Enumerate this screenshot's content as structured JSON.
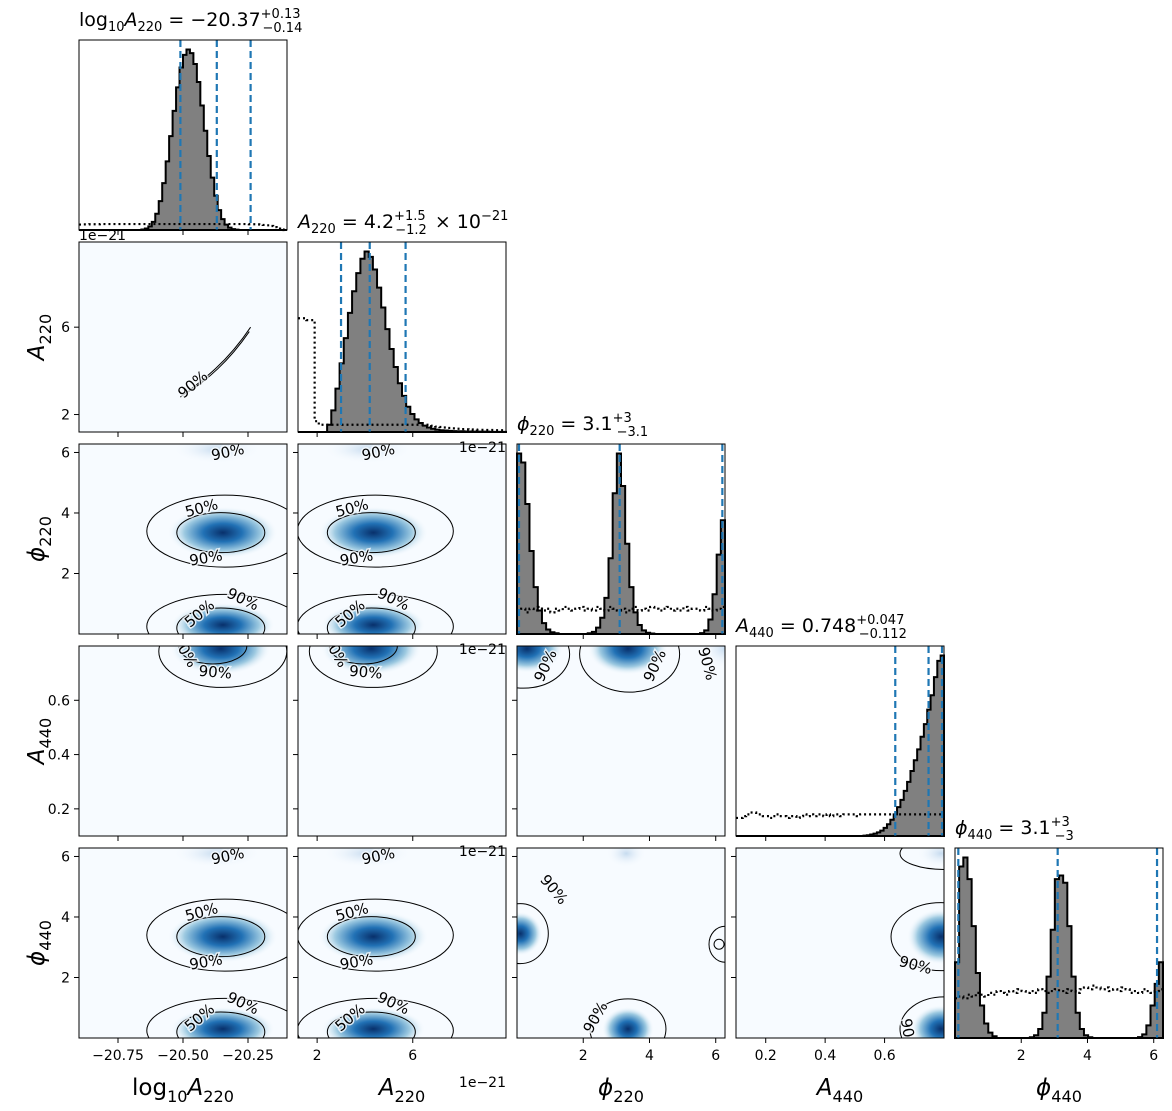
{
  "chart_data": {
    "type": "corner",
    "parameters": [
      {
        "key": "logA220",
        "label_base": "log",
        "label_sub": "10",
        "label_var": "A",
        "label_var_sub": "220",
        "range": [
          -20.9,
          -20.1
        ],
        "ticks": [
          -20.75,
          -20.5,
          -20.25
        ],
        "tick_labels": [
          "−20.75",
          "−20.50",
          "−20.25"
        ],
        "median": -20.37,
        "lower": -20.51,
        "upper": -20.24,
        "title_prefix": "log",
        "title_prefix_sub": "10",
        "title_var": "A",
        "title_var_sub": "220",
        "title_value": " = −20.37",
        "title_sup": "+0.13",
        "title_sub": "−0.14",
        "title_suffix": ""
      },
      {
        "key": "A220",
        "label_var": "A",
        "label_var_sub": "220",
        "range": [
          1.2,
          9.9
        ],
        "ticks": [
          2,
          6
        ],
        "tick_labels": [
          "2",
          "6"
        ],
        "offset_text": "1e−21",
        "median": 4.2,
        "lower": 3.0,
        "upper": 5.7,
        "title_var": "A",
        "title_var_sub": "220",
        "title_value": " = 4.2",
        "title_sup": "+1.5",
        "title_sub": "−1.2",
        "title_suffix": " × 10",
        "title_suffix_sup": "−21"
      },
      {
        "key": "phi220",
        "label_var": "ϕ",
        "label_var_sub": "220",
        "range": [
          0.0,
          6.28
        ],
        "ticks": [
          2,
          4,
          6
        ],
        "tick_labels": [
          "2",
          "4",
          "6"
        ],
        "median": 3.1,
        "lower": 0.0,
        "upper": 6.2,
        "title_var": "ϕ",
        "title_var_sub": "220",
        "title_value": " = 3.1",
        "title_sup": "+3",
        "title_sub": "−3.1",
        "title_suffix": ""
      },
      {
        "key": "A440",
        "label_var": "A",
        "label_var_sub": "440",
        "range": [
          0.1,
          0.8
        ],
        "ticks": [
          0.2,
          0.4,
          0.6
        ],
        "tick_labels": [
          "0.2",
          "0.4",
          "0.6"
        ],
        "left_ticks": [
          0.2,
          0.4,
          0.6
        ],
        "left_tick_labels": [
          "0.2",
          "0.4",
          "0.6"
        ],
        "median": 0.748,
        "lower": 0.636,
        "upper": 0.795,
        "title_var": "A",
        "title_var_sub": "440",
        "title_value": " = 0.748",
        "title_sup": "+0.047",
        "title_sub": "−0.112",
        "title_suffix": ""
      },
      {
        "key": "phi440",
        "label_var": "ϕ",
        "label_var_sub": "440",
        "range": [
          0.0,
          6.28
        ],
        "ticks": [
          2,
          4,
          6
        ],
        "tick_labels": [
          "2",
          "4",
          "6"
        ],
        "median": 3.1,
        "lower": 0.1,
        "upper": 6.1,
        "title_var": "ϕ",
        "title_var_sub": "440",
        "title_value": " = 3.1",
        "title_sup": "+3",
        "title_sub": "−3",
        "title_suffix": ""
      }
    ],
    "diag_histograms": [
      {
        "bins": [
          -20.9,
          -20.1
        ],
        "posterior": [
          0,
          0,
          0,
          0,
          0,
          0,
          0,
          0,
          0,
          0,
          0,
          0,
          0,
          0,
          0,
          0,
          0,
          0,
          0.003,
          0.008,
          0.02,
          0.045,
          0.09,
          0.16,
          0.26,
          0.38,
          0.52,
          0.66,
          0.79,
          0.9,
          0.97,
          1.0,
          0.98,
          0.92,
          0.82,
          0.69,
          0.55,
          0.41,
          0.29,
          0.19,
          0.11,
          0.06,
          0.03,
          0.013,
          0.005,
          0.002,
          0,
          0,
          0,
          0,
          0,
          0,
          0,
          0,
          0,
          0,
          0,
          0,
          0,
          0
        ],
        "prior": [
          0.03,
          0.031,
          0.031,
          0.032,
          0.032,
          0.032,
          0.033,
          0.033,
          0.033,
          0.033,
          0.033,
          0.033,
          0.033,
          0.033,
          0.033,
          0.033,
          0.033,
          0.033,
          0.033,
          0.033,
          0.033,
          0.033,
          0.033,
          0.033,
          0.033,
          0.033,
          0.033,
          0.033,
          0.033,
          0.033,
          0.033,
          0.033,
          0.033,
          0.033,
          0.033,
          0.033,
          0.033,
          0.033,
          0.033,
          0.033,
          0.033,
          0.033,
          0.033,
          0.033,
          0.033,
          0.033,
          0.033,
          0.033,
          0.033,
          0.032,
          0.032,
          0.031,
          0.03,
          0.028,
          0.026,
          0.022,
          0.016,
          0.008,
          0.003,
          0
        ]
      },
      {
        "bins": [
          1.2,
          9.9
        ],
        "posterior": [
          0,
          0,
          0,
          0,
          0,
          0,
          0,
          0.04,
          0.12,
          0.24,
          0.38,
          0.52,
          0.66,
          0.78,
          0.88,
          0.96,
          1.0,
          0.97,
          0.9,
          0.8,
          0.69,
          0.57,
          0.46,
          0.36,
          0.27,
          0.2,
          0.14,
          0.1,
          0.07,
          0.05,
          0.035,
          0.025,
          0.018,
          0.013,
          0.01,
          0.008,
          0.006,
          0.005,
          0.004,
          0.004,
          0.003,
          0.003,
          0.002,
          0.002,
          0.002,
          0.002,
          0.001,
          0.001,
          0.001,
          0.001
        ],
        "prior": [
          0.63,
          0.63,
          0.62,
          0.62,
          0.06,
          0.04,
          0.04,
          0.04,
          0.04,
          0.04,
          0.04,
          0.04,
          0.04,
          0.04,
          0.04,
          0.04,
          0.04,
          0.04,
          0.04,
          0.04,
          0.04,
          0.04,
          0.04,
          0.04,
          0.04,
          0.04,
          0.04,
          0.04,
          0.04,
          0.04,
          0.04,
          0.04,
          0.035,
          0.03,
          0.028,
          0.025,
          0.022,
          0.02,
          0.018,
          0.016,
          0.015,
          0.014,
          0.013,
          0.012,
          0.012,
          0.011,
          0.011,
          0.01,
          0.01,
          0.01
        ]
      },
      {
        "bins": [
          0.0,
          6.28
        ],
        "posterior": [
          1.0,
          0.95,
          0.72,
          0.46,
          0.26,
          0.13,
          0.06,
          0.025,
          0.01,
          0.004,
          0,
          0,
          0,
          0,
          0,
          0,
          0,
          0.004,
          0.012,
          0.035,
          0.09,
          0.2,
          0.42,
          0.78,
          1.0,
          0.82,
          0.5,
          0.26,
          0.12,
          0.05,
          0.02,
          0.007,
          0.003,
          0,
          0,
          0,
          0,
          0,
          0,
          0,
          0,
          0,
          0,
          0,
          0.005,
          0.02,
          0.08,
          0.22,
          0.44,
          0.63
        ],
        "prior": [
          0.13,
          0.14,
          0.12,
          0.14,
          0.13,
          0.15,
          0.13,
          0.14,
          0.12,
          0.14,
          0.13,
          0.15,
          0.14,
          0.13,
          0.14,
          0.15,
          0.13,
          0.14,
          0.13,
          0.15,
          0.14,
          0.13,
          0.15,
          0.14,
          0.13,
          0.14,
          0.12,
          0.14,
          0.15,
          0.13,
          0.14,
          0.13,
          0.15,
          0.14,
          0.13,
          0.14,
          0.15,
          0.13,
          0.14,
          0.13,
          0.15,
          0.13,
          0.14,
          0.14,
          0.13,
          0.15,
          0.14,
          0.13,
          0.14,
          0.15
        ]
      },
      {
        "bins": [
          0.1,
          0.8
        ],
        "posterior": [
          0,
          0,
          0,
          0,
          0,
          0,
          0,
          0,
          0,
          0,
          0,
          0,
          0,
          0,
          0,
          0,
          0,
          0,
          0,
          0,
          0,
          0,
          0,
          0,
          0,
          0,
          0,
          0,
          0,
          0,
          0,
          0,
          0,
          0,
          0,
          0,
          0,
          0,
          0.002,
          0.004,
          0.008,
          0.013,
          0.02,
          0.03,
          0.045,
          0.065,
          0.09,
          0.12,
          0.16,
          0.2,
          0.25,
          0.3,
          0.36,
          0.42,
          0.48,
          0.55,
          0.62,
          0.7,
          0.78,
          0.88,
          0.97,
          1.0
        ],
        "prior": [
          0.1,
          0.1,
          0.11,
          0.12,
          0.13,
          0.13,
          0.12,
          0.12,
          0.11,
          0.11,
          0.1,
          0.11,
          0.12,
          0.11,
          0.11,
          0.1,
          0.11,
          0.11,
          0.1,
          0.11,
          0.12,
          0.11,
          0.12,
          0.11,
          0.12,
          0.12,
          0.11,
          0.12,
          0.11,
          0.12,
          0.12,
          0.11,
          0.12,
          0.12,
          0.12,
          0.12,
          0.11,
          0.12,
          0.12,
          0.12,
          0.12,
          0.12,
          0.12,
          0.12,
          0.12,
          0.12,
          0.12,
          0.12,
          0.12,
          0.12,
          0.12,
          0.12,
          0.12,
          0.12,
          0.12,
          0.12,
          0.12,
          0.12,
          0.12,
          0.12,
          0.12,
          0.12
        ]
      },
      {
        "bins": [
          0.0,
          6.28
        ],
        "posterior": [
          0.42,
          0.95,
          1.0,
          0.88,
          0.62,
          0.36,
          0.18,
          0.08,
          0.03,
          0.01,
          0,
          0,
          0,
          0,
          0,
          0,
          0,
          0,
          0.004,
          0.015,
          0.05,
          0.14,
          0.34,
          0.6,
          0.88,
          0.9,
          0.86,
          0.62,
          0.34,
          0.14,
          0.05,
          0.015,
          0.004,
          0,
          0,
          0,
          0,
          0,
          0,
          0,
          0,
          0,
          0,
          0,
          0.005,
          0.02,
          0.07,
          0.18,
          0.3,
          0.42
        ],
        "prior": [
          0.22,
          0.23,
          0.22,
          0.24,
          0.23,
          0.25,
          0.24,
          0.23,
          0.25,
          0.24,
          0.26,
          0.25,
          0.24,
          0.26,
          0.25,
          0.27,
          0.26,
          0.25,
          0.26,
          0.25,
          0.27,
          0.26,
          0.25,
          0.26,
          0.27,
          0.26,
          0.25,
          0.27,
          0.26,
          0.25,
          0.27,
          0.28,
          0.27,
          0.29,
          0.28,
          0.27,
          0.28,
          0.26,
          0.27,
          0.26,
          0.28,
          0.27,
          0.25,
          0.26,
          0.25,
          0.27,
          0.26,
          0.25,
          0.26,
          0.27
        ]
      }
    ],
    "contour_labels": [
      "50%",
      "90%"
    ],
    "offset_label": "1e−21",
    "colors": {
      "hist_fill": "#808080",
      "quantile": "#1f77b4",
      "density_dark": "#08306b",
      "density_mid": "#2171b5",
      "density_light": "#c6dbef",
      "density_bg": "#f7fbff"
    }
  }
}
